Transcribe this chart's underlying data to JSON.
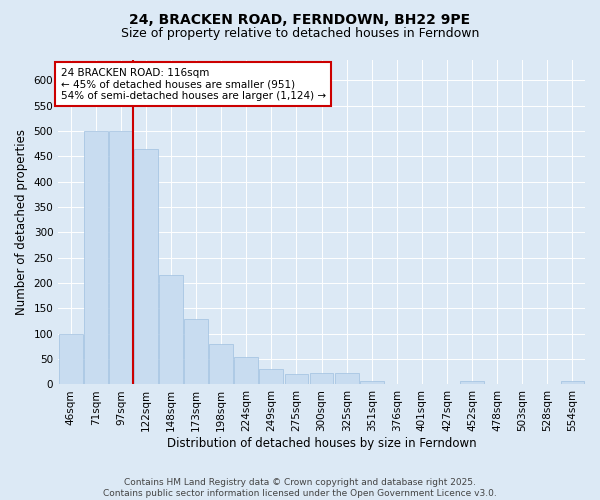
{
  "title": "24, BRACKEN ROAD, FERNDOWN, BH22 9PE",
  "subtitle": "Size of property relative to detached houses in Ferndown",
  "xlabel": "Distribution of detached houses by size in Ferndown",
  "ylabel": "Number of detached properties",
  "footer": "Contains HM Land Registry data © Crown copyright and database right 2025.\nContains public sector information licensed under the Open Government Licence v3.0.",
  "bins": [
    "46sqm",
    "71sqm",
    "97sqm",
    "122sqm",
    "148sqm",
    "173sqm",
    "198sqm",
    "224sqm",
    "249sqm",
    "275sqm",
    "300sqm",
    "325sqm",
    "351sqm",
    "376sqm",
    "401sqm",
    "427sqm",
    "452sqm",
    "478sqm",
    "503sqm",
    "528sqm",
    "554sqm"
  ],
  "bar_heights": [
    100,
    500,
    500,
    465,
    215,
    130,
    80,
    55,
    30,
    20,
    22,
    22,
    6,
    0,
    0,
    0,
    7,
    0,
    0,
    0,
    7
  ],
  "bar_color": "#c8dcf0",
  "bar_edge_color": "#a0c0e0",
  "vline_color": "#cc0000",
  "annotation_text": "24 BRACKEN ROAD: 116sqm\n← 45% of detached houses are smaller (951)\n54% of semi-detached houses are larger (1,124) →",
  "annotation_box_color": "#ffffff",
  "annotation_box_edge": "#cc0000",
  "ylim": [
    0,
    640
  ],
  "yticks": [
    0,
    50,
    100,
    150,
    200,
    250,
    300,
    350,
    400,
    450,
    500,
    550,
    600
  ],
  "background_color": "#dce9f5",
  "plot_bg_color": "#dce9f5",
  "title_fontsize": 10,
  "subtitle_fontsize": 9,
  "axis_label_fontsize": 8.5,
  "tick_fontsize": 7.5,
  "footer_fontsize": 6.5
}
